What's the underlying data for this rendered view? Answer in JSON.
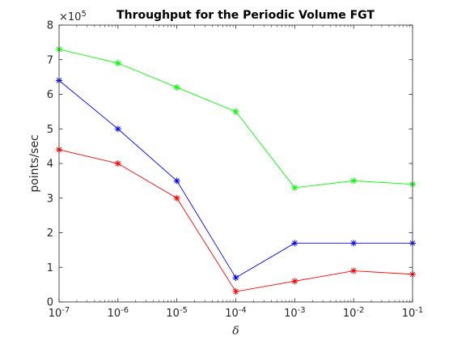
{
  "chart_data": {
    "type": "line",
    "title": "Throughput for the Periodic Volume FGT",
    "xlabel": "δ",
    "ylabel": "points/sec",
    "x_scale": "log",
    "x": [
      1e-07,
      1e-06,
      1e-05,
      0.0001,
      0.001,
      0.01,
      0.1
    ],
    "x_tick_bases": [
      "10",
      "10",
      "10",
      "10",
      "10",
      "10",
      "10"
    ],
    "x_tick_exponents": [
      "-7",
      "-6",
      "-5",
      "-4",
      "-3",
      "-2",
      "-1"
    ],
    "ylim": [
      0,
      8
    ],
    "y_ticks": [
      "0",
      "1",
      "2",
      "3",
      "4",
      "5",
      "6",
      "7",
      "8"
    ],
    "y_multiplier_base": "×10",
    "y_multiplier_exponent": "5",
    "grid": false,
    "marker": "*",
    "series": [
      {
        "color": "#00ff00",
        "values": [
          7.3,
          6.9,
          6.2,
          5.5,
          3.3,
          3.5,
          3.4
        ]
      },
      {
        "color": "#0000ff",
        "values": [
          6.4,
          5.0,
          3.5,
          0.7,
          1.7,
          1.7,
          1.7
        ]
      },
      {
        "color": "#ff0000",
        "values": [
          4.4,
          4.0,
          3.0,
          0.3,
          0.6,
          0.9,
          0.8
        ]
      }
    ]
  }
}
